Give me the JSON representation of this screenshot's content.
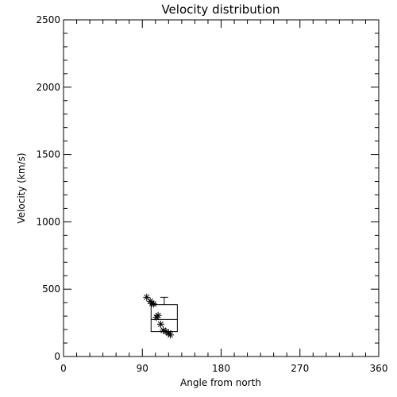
{
  "chart_data": {
    "type": "scatter",
    "title": "Velocity distribution",
    "xlabel": "Angle from north",
    "ylabel": "Velocity (km/s)",
    "xlim": [
      0,
      360
    ],
    "ylim": [
      0,
      2500
    ],
    "xticks": [
      0,
      90,
      180,
      270,
      360
    ],
    "yticks": [
      0,
      500,
      1000,
      1500,
      2000,
      2500
    ],
    "grid": false,
    "points": [
      {
        "x": 95,
        "y": 440
      },
      {
        "x": 99,
        "y": 410
      },
      {
        "x": 101,
        "y": 395
      },
      {
        "x": 103,
        "y": 390
      },
      {
        "x": 106,
        "y": 290
      },
      {
        "x": 108,
        "y": 305
      },
      {
        "x": 111,
        "y": 240
      },
      {
        "x": 114,
        "y": 195
      },
      {
        "x": 117,
        "y": 185
      },
      {
        "x": 120,
        "y": 175
      },
      {
        "x": 122,
        "y": 160
      }
    ],
    "boxplot": {
      "x_min": 100,
      "x_max": 130,
      "whisker_x": 115,
      "min": 185,
      "q1": 185,
      "median": 275,
      "q3": 385,
      "max": 440
    }
  }
}
